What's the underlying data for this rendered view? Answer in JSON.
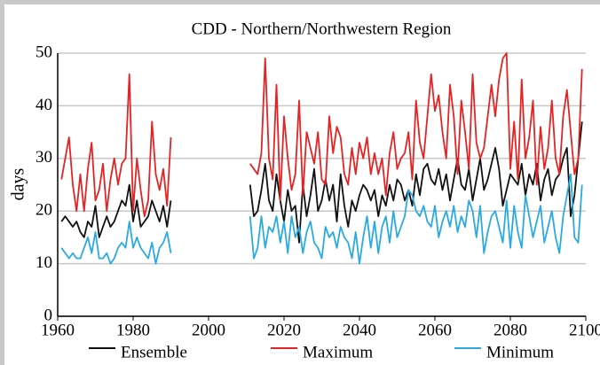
{
  "chart_data": {
    "type": "line",
    "title": "CDD - Northern/Northwestern Region",
    "y_label": "days",
    "x": [
      1961,
      1962,
      1963,
      1964,
      1965,
      1966,
      1967,
      1968,
      1969,
      1970,
      1971,
      1972,
      1973,
      1974,
      1975,
      1976,
      1977,
      1978,
      1979,
      1980,
      1981,
      1982,
      1983,
      1984,
      1985,
      1986,
      1987,
      1988,
      1989,
      1990,
      2000,
      2011,
      2012,
      2013,
      2014,
      2015,
      2016,
      2017,
      2018,
      2019,
      2020,
      2021,
      2022,
      2023,
      2024,
      2025,
      2026,
      2027,
      2028,
      2029,
      2030,
      2031,
      2032,
      2033,
      2034,
      2035,
      2036,
      2037,
      2038,
      2039,
      2040,
      2041,
      2042,
      2043,
      2044,
      2045,
      2046,
      2047,
      2048,
      2049,
      2050,
      2051,
      2052,
      2053,
      2054,
      2055,
      2056,
      2057,
      2058,
      2059,
      2060,
      2061,
      2062,
      2063,
      2064,
      2065,
      2066,
      2067,
      2068,
      2069,
      2070,
      2071,
      2072,
      2073,
      2074,
      2075,
      2076,
      2077,
      2078,
      2079,
      2080,
      2081,
      2082,
      2083,
      2084,
      2085,
      2086,
      2087,
      2088,
      2089,
      2090,
      2091,
      2092,
      2093,
      2094,
      2095,
      2096,
      2097,
      2098,
      2099
    ],
    "series": [
      {
        "name": "Ensemble",
        "color": "#111111",
        "values": [
          18,
          19,
          18,
          17,
          18,
          16,
          15,
          18,
          17,
          21,
          15,
          17,
          19,
          17,
          18,
          20,
          22,
          21,
          25,
          18,
          22,
          17,
          18,
          19,
          22,
          20,
          18,
          21,
          17,
          22,
          null,
          25,
          19,
          20,
          24,
          29,
          22,
          20,
          27,
          22,
          18,
          24,
          20,
          21,
          14,
          25,
          19,
          23,
          28,
          20,
          22,
          26,
          22,
          25,
          18,
          27,
          21,
          17,
          22,
          20,
          23,
          25,
          24,
          22,
          24,
          19,
          23,
          21,
          25,
          22,
          26,
          25,
          22,
          24,
          21,
          27,
          23,
          28,
          29,
          26,
          25,
          28,
          24,
          27,
          22,
          26,
          30,
          25,
          24,
          28,
          22,
          26,
          30,
          24,
          26,
          29,
          32,
          28,
          21,
          24,
          27,
          26,
          25,
          29,
          23,
          27,
          25,
          29,
          22,
          26,
          28,
          23,
          26,
          27,
          30,
          32,
          19,
          23,
          30,
          37
        ]
      },
      {
        "name": "Maximum",
        "color": "#e42424",
        "values": [
          26,
          30,
          34,
          25,
          20,
          27,
          20,
          28,
          33,
          22,
          24,
          29,
          20,
          26,
          30,
          25,
          29,
          30,
          46,
          20,
          30,
          24,
          19,
          22,
          37,
          27,
          24,
          28,
          21,
          34,
          null,
          29,
          28,
          27,
          31,
          49,
          30,
          26,
          44,
          22,
          38,
          30,
          24,
          27,
          41,
          23,
          35,
          32,
          29,
          35,
          26,
          25,
          38,
          31,
          36,
          34,
          27,
          25,
          32,
          27,
          33,
          30,
          34,
          27,
          31,
          27,
          30,
          23,
          31,
          35,
          28,
          30,
          31,
          35,
          26,
          41,
          33,
          30,
          38,
          46,
          39,
          42,
          35,
          30,
          44,
          38,
          27,
          41,
          35,
          28,
          46,
          33,
          30,
          32,
          38,
          44,
          38,
          45,
          49,
          50,
          28,
          37,
          26,
          45,
          30,
          34,
          41,
          25,
          36,
          28,
          32,
          41,
          30,
          27,
          38,
          43,
          35,
          27,
          30,
          47
        ]
      },
      {
        "name": "Minimum",
        "color": "#2aaae2",
        "values": [
          13,
          12,
          11,
          12,
          11,
          11,
          13,
          15,
          12,
          16,
          11,
          11,
          12,
          10,
          11,
          13,
          14,
          13,
          18,
          13,
          15,
          13,
          12,
          11,
          14,
          10,
          13,
          14,
          16,
          12,
          null,
          19,
          11,
          13,
          19,
          13,
          17,
          16,
          19,
          14,
          18,
          12,
          19,
          15,
          17,
          12,
          16,
          18,
          14,
          13,
          11,
          17,
          15,
          16,
          13,
          17,
          15,
          14,
          11,
          16,
          10,
          15,
          19,
          13,
          18,
          12,
          17,
          19,
          14,
          20,
          15,
          17,
          19,
          24,
          23,
          20,
          19,
          21,
          18,
          17,
          21,
          15,
          18,
          20,
          17,
          21,
          16,
          19,
          17,
          22,
          20,
          15,
          21,
          12,
          16,
          19,
          20,
          17,
          14,
          22,
          13,
          21,
          16,
          13,
          23,
          19,
          15,
          18,
          21,
          14,
          17,
          20,
          15,
          12,
          19,
          23,
          27,
          15,
          14,
          25
        ]
      }
    ],
    "xlim": [
      1960,
      2100
    ],
    "xticks": [
      1960,
      1980,
      2000,
      2020,
      2040,
      2060,
      2080,
      2100
    ],
    "ylim": [
      0,
      50
    ],
    "yticks": [
      0,
      10,
      20,
      30,
      40,
      50
    ],
    "grid": true,
    "legend": "bottom"
  }
}
